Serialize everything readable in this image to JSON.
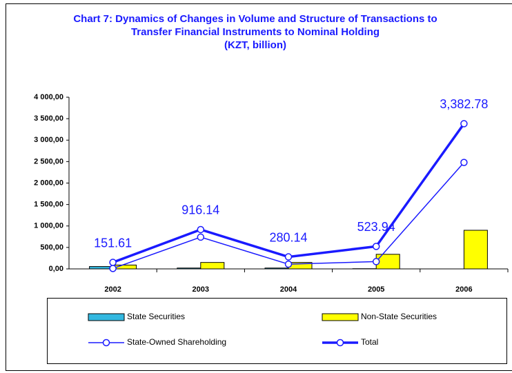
{
  "chart_data": {
    "type": "bar_line",
    "title": "Chart 7: Dynamics of Changes in Volume and Structure of Transactions to Transfer Financial Instruments to Nominal Holding",
    "subtitle": "(KZT, billion)",
    "categories": [
      "2002",
      "2003",
      "2004",
      "2005",
      "2006"
    ],
    "series": [
      {
        "name": "State Securities",
        "type": "bar",
        "color": "#33b8e0",
        "values": [
          55,
          20,
          20,
          5,
          0
        ]
      },
      {
        "name": "Non-State Securities",
        "type": "bar",
        "color": "#ffff00",
        "values": [
          90,
          150,
          150,
          340,
          900
        ]
      },
      {
        "name": "State-Owned Shareholding",
        "type": "line",
        "color": "#1a1aff",
        "values": [
          10,
          740,
          110,
          170,
          2480
        ]
      },
      {
        "name": "Total",
        "type": "line",
        "color": "#1a1aff",
        "values": [
          151.61,
          916.14,
          280.14,
          523.94,
          3382.78
        ],
        "value_labels": [
          "151.61",
          "916.14",
          "280.14",
          "523.94",
          "3,382.78"
        ]
      }
    ],
    "ylim": [
      0,
      4000
    ],
    "yticks": [
      {
        "value": 0,
        "label": "0,00"
      },
      {
        "value": 500,
        "label": "500,00"
      },
      {
        "value": 1000,
        "label": "1 000,00"
      },
      {
        "value": 1500,
        "label": "1 500,00"
      },
      {
        "value": 2000,
        "label": "2 000,00"
      },
      {
        "value": 2500,
        "label": "2 500,00"
      },
      {
        "value": 3000,
        "label": "3 000,00"
      },
      {
        "value": 3500,
        "label": "3 500,00"
      },
      {
        "value": 4000,
        "label": "4 000,00"
      }
    ],
    "grid": false
  }
}
